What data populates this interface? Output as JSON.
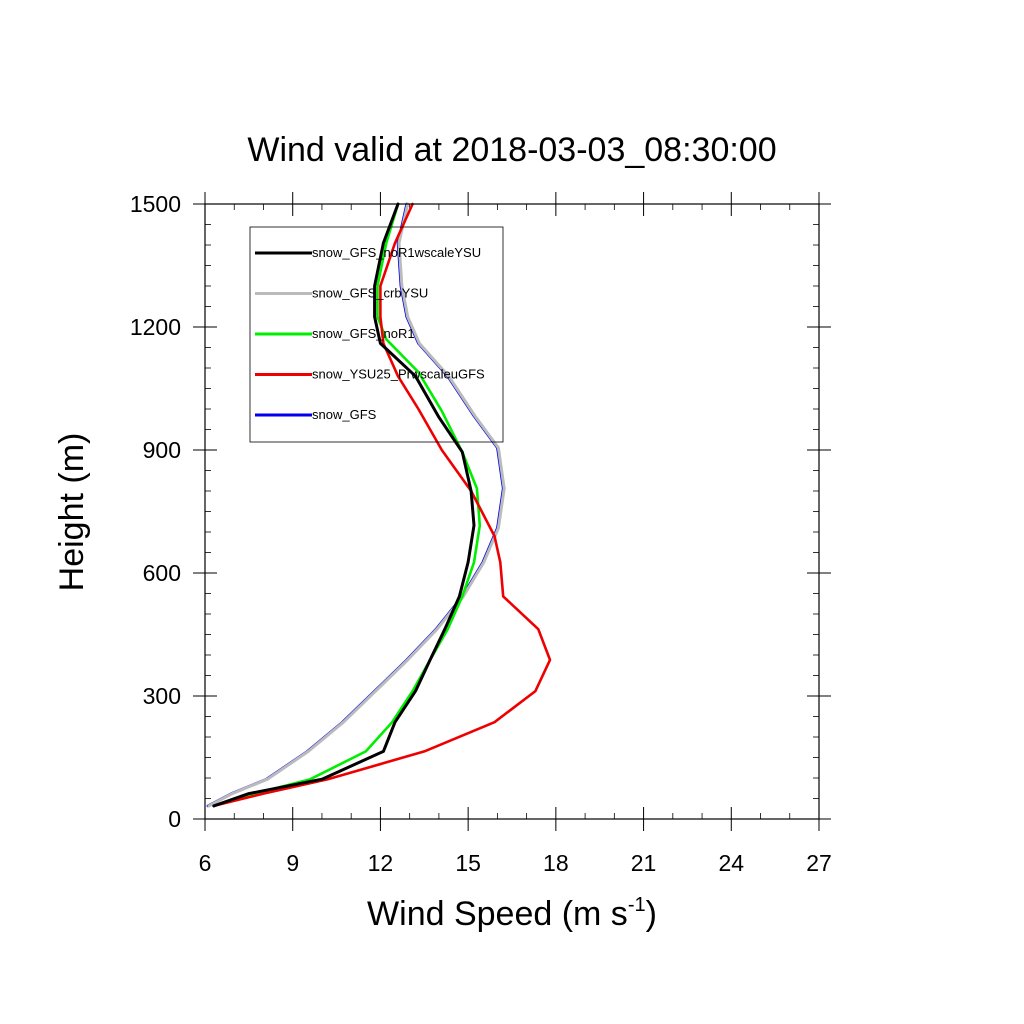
{
  "chart_data": {
    "type": "line",
    "title": "Wind valid at 2018-03-03_08:30:00",
    "xlabel": "Wind Speed (m s",
    "xlabel_sup": "-1",
    "xlabel_end": ")",
    "ylabel": "Height (m)",
    "xlim": [
      6,
      27
    ],
    "ylim": [
      0,
      1500
    ],
    "xticks": [
      6,
      9,
      12,
      15,
      18,
      21,
      24,
      27
    ],
    "yticks": [
      0,
      300,
      600,
      900,
      1200,
      1500
    ],
    "grid": false,
    "legend_position": "top-left",
    "series": [
      {
        "name": "snow_GFS_noR1wscaleYSU",
        "color": "#000000",
        "points": [
          [
            6.3,
            32
          ],
          [
            7.5,
            62
          ],
          [
            10.0,
            97
          ],
          [
            12.1,
            165
          ],
          [
            12.5,
            236
          ],
          [
            13.2,
            312
          ],
          [
            13.7,
            388
          ],
          [
            14.2,
            463
          ],
          [
            14.7,
            543
          ],
          [
            15.0,
            626
          ],
          [
            15.2,
            716
          ],
          [
            15.1,
            800
          ],
          [
            14.8,
            895
          ],
          [
            14.0,
            980
          ],
          [
            13.2,
            1080
          ],
          [
            12.0,
            1160
          ],
          [
            11.8,
            1225
          ],
          [
            11.8,
            1300
          ],
          [
            12.1,
            1405
          ],
          [
            12.6,
            1500
          ]
        ]
      },
      {
        "name": "snow_GFS_crbYSU",
        "color": "#bbbbbb",
        "points": [
          [
            6.1,
            32
          ],
          [
            6.9,
            62
          ],
          [
            8.1,
            97
          ],
          [
            9.5,
            165
          ],
          [
            10.7,
            236
          ],
          [
            11.8,
            312
          ],
          [
            12.9,
            388
          ],
          [
            13.9,
            463
          ],
          [
            14.8,
            543
          ],
          [
            15.5,
            626
          ],
          [
            16.0,
            710
          ],
          [
            16.2,
            806
          ],
          [
            16.0,
            905
          ],
          [
            15.2,
            983
          ],
          [
            14.3,
            1080
          ],
          [
            13.3,
            1160
          ],
          [
            12.9,
            1225
          ],
          [
            12.7,
            1300
          ],
          [
            12.6,
            1405
          ],
          [
            12.9,
            1500
          ]
        ]
      },
      {
        "name": "snow_GFS_noR1",
        "color": "#00ee00",
        "points": [
          [
            6.3,
            32
          ],
          [
            7.7,
            62
          ],
          [
            9.6,
            97
          ],
          [
            11.5,
            165
          ],
          [
            12.4,
            236
          ],
          [
            13.1,
            312
          ],
          [
            13.7,
            388
          ],
          [
            14.3,
            463
          ],
          [
            14.8,
            543
          ],
          [
            15.2,
            626
          ],
          [
            15.4,
            716
          ],
          [
            15.3,
            806
          ],
          [
            14.8,
            895
          ],
          [
            14.1,
            995
          ],
          [
            13.3,
            1090
          ],
          [
            12.2,
            1170
          ],
          [
            11.9,
            1225
          ],
          [
            11.9,
            1300
          ],
          [
            12.2,
            1405
          ],
          [
            12.6,
            1500
          ]
        ]
      },
      {
        "name": "snow_YSU25_PrwscaleuGFS",
        "color": "#ee0000",
        "points": [
          [
            6.3,
            32
          ],
          [
            8.0,
            62
          ],
          [
            10.2,
            97
          ],
          [
            13.5,
            165
          ],
          [
            15.9,
            236
          ],
          [
            17.3,
            312
          ],
          [
            17.8,
            388
          ],
          [
            17.4,
            463
          ],
          [
            16.2,
            543
          ],
          [
            16.1,
            626
          ],
          [
            15.9,
            690
          ],
          [
            15.5,
            745
          ],
          [
            15.1,
            800
          ],
          [
            14.1,
            900
          ],
          [
            13.3,
            1000
          ],
          [
            12.6,
            1080
          ],
          [
            12.1,
            1160
          ],
          [
            12.0,
            1225
          ],
          [
            12.0,
            1300
          ],
          [
            12.5,
            1405
          ],
          [
            13.1,
            1500
          ]
        ]
      },
      {
        "name": "snow_GFS",
        "color": "#0000ee",
        "points": [
          [
            6.1,
            32
          ],
          [
            6.9,
            62
          ],
          [
            8.1,
            97
          ],
          [
            9.5,
            165
          ],
          [
            10.7,
            236
          ],
          [
            11.8,
            312
          ],
          [
            12.9,
            388
          ],
          [
            13.9,
            463
          ],
          [
            14.8,
            543
          ],
          [
            15.5,
            626
          ],
          [
            16.0,
            710
          ],
          [
            16.2,
            806
          ],
          [
            16.0,
            905
          ],
          [
            15.2,
            983
          ],
          [
            14.3,
            1080
          ],
          [
            13.3,
            1160
          ],
          [
            12.9,
            1225
          ],
          [
            12.7,
            1300
          ],
          [
            12.6,
            1405
          ],
          [
            12.9,
            1500
          ]
        ]
      }
    ]
  }
}
